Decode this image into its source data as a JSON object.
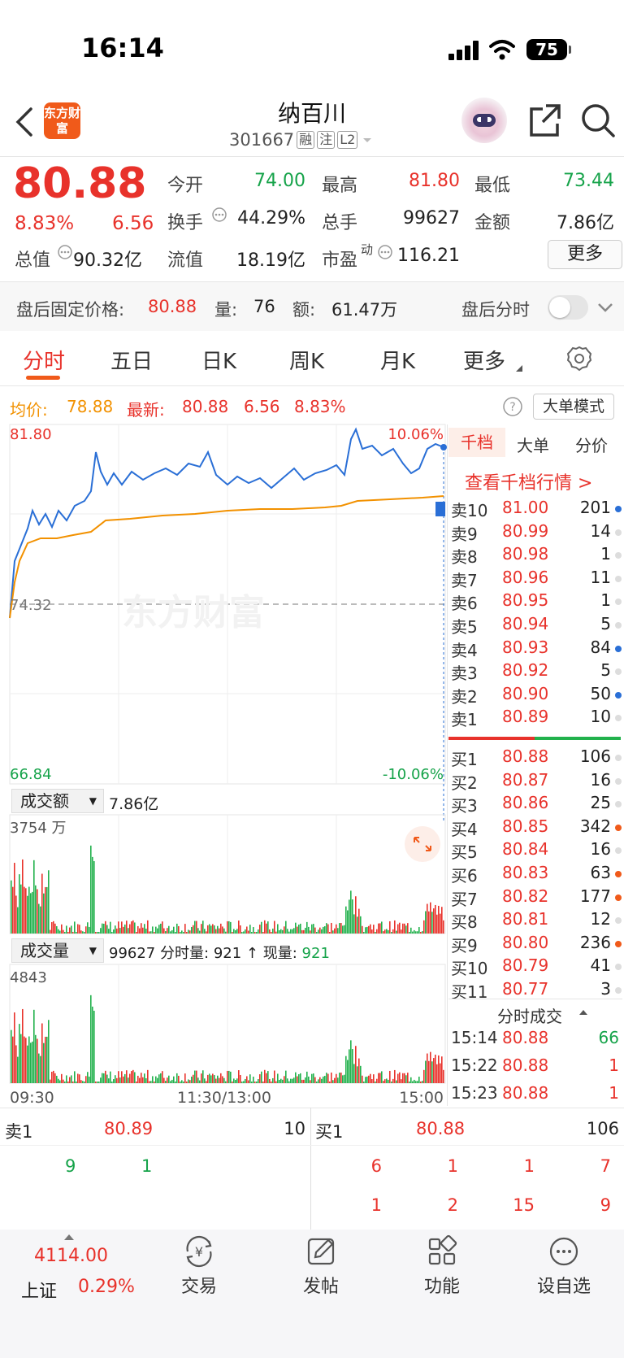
{
  "status_bar": {
    "time": "16:14",
    "battery": "75"
  },
  "header": {
    "logo_text": "东方财富",
    "title": "纳百川",
    "code": "301667",
    "tags": [
      "融",
      "注",
      "L2"
    ]
  },
  "quote": {
    "price": "80.88",
    "change_pct": "8.83%",
    "change": "6.56",
    "open_label": "今开",
    "open": "74.00",
    "high_label": "最高",
    "high": "81.80",
    "low_label": "最低",
    "low": "73.44",
    "turnover_label": "换手",
    "turnover": "44.29%",
    "volume_label": "总手",
    "volume": "99627",
    "amount_label": "金额",
    "amount": "7.86亿",
    "mktcap_label": "总值",
    "mktcap": "90.32亿",
    "float_label": "流值",
    "float": "18.19亿",
    "pe_label": "市盈",
    "pe_sup": "动",
    "pe": "116.21",
    "more_label": "更多"
  },
  "after_hours": {
    "label": "盘后固定价格:",
    "price": "80.88",
    "vol_label": "量:",
    "vol": "76",
    "amt_label": "额:",
    "amt": "61.47万",
    "switch_label": "盘后分时"
  },
  "tabs": [
    "分时",
    "五日",
    "日K",
    "周K",
    "月K",
    "更多"
  ],
  "chart_info": {
    "avg_label": "均价:",
    "avg": "78.88",
    "latest_label": "最新:",
    "latest": "80.88",
    "chg": "6.56",
    "pct": "8.83%",
    "mode_btn": "大单模式"
  },
  "chart_data": {
    "type": "line",
    "series": [
      {
        "name": "均价",
        "color": "#f29100"
      },
      {
        "color": "#2a6fd6"
      }
    ],
    "ylim": [
      66.84,
      81.8
    ],
    "y_top_label": "81.80",
    "y_mid_label": "74.32",
    "y_bottom_label": "66.84",
    "pct_top_label": "10.06%",
    "pct_bottom_label": "-10.06%",
    "x_labels": [
      "09:30",
      "11:30/13:00",
      "15:00"
    ],
    "watermark": "东方财富"
  },
  "amount_panel": {
    "select": "成交额",
    "total": "7.86亿",
    "max_label": "3754 万"
  },
  "volume_panel": {
    "select": "成交量",
    "total": "99627",
    "min_label": "分时量:",
    "min_vol": "921",
    "cur_label": "现量:",
    "cur_vol": "921",
    "max_label": "4843"
  },
  "orderbook": {
    "tabs": [
      "千档",
      "大单",
      "分价"
    ],
    "link": "查看千档行情 >",
    "asks": [
      {
        "label": "卖10",
        "price": "81.00",
        "vol": "201",
        "dot": "#2a6fd6"
      },
      {
        "label": "卖9",
        "price": "80.99",
        "vol": "14",
        "dot": "#ddd"
      },
      {
        "label": "卖8",
        "price": "80.98",
        "vol": "1",
        "dot": "#ddd"
      },
      {
        "label": "卖7",
        "price": "80.96",
        "vol": "11",
        "dot": "#ddd"
      },
      {
        "label": "卖6",
        "price": "80.95",
        "vol": "1",
        "dot": "#ddd"
      },
      {
        "label": "卖5",
        "price": "80.94",
        "vol": "5",
        "dot": "#ddd"
      },
      {
        "label": "卖4",
        "price": "80.93",
        "vol": "84",
        "dot": "#2a6fd6"
      },
      {
        "label": "卖3",
        "price": "80.92",
        "vol": "5",
        "dot": "#ddd"
      },
      {
        "label": "卖2",
        "price": "80.90",
        "vol": "50",
        "dot": "#2a6fd6"
      },
      {
        "label": "卖1",
        "price": "80.89",
        "vol": "10",
        "dot": "#ddd"
      }
    ],
    "bids": [
      {
        "label": "买1",
        "price": "80.88",
        "vol": "106",
        "dot": "#ddd"
      },
      {
        "label": "买2",
        "price": "80.87",
        "vol": "16",
        "dot": "#ddd"
      },
      {
        "label": "买3",
        "price": "80.86",
        "vol": "25",
        "dot": "#ddd"
      },
      {
        "label": "买4",
        "price": "80.85",
        "vol": "342",
        "dot": "#f05a1a"
      },
      {
        "label": "买5",
        "price": "80.84",
        "vol": "16",
        "dot": "#ddd"
      },
      {
        "label": "买6",
        "price": "80.83",
        "vol": "63",
        "dot": "#f05a1a"
      },
      {
        "label": "买7",
        "price": "80.82",
        "vol": "177",
        "dot": "#f05a1a"
      },
      {
        "label": "买8",
        "price": "80.81",
        "vol": "12",
        "dot": "#ddd"
      },
      {
        "label": "买9",
        "price": "80.80",
        "vol": "236",
        "dot": "#f05a1a"
      },
      {
        "label": "买10",
        "price": "80.79",
        "vol": "41",
        "dot": "#ddd"
      },
      {
        "label": "买11",
        "price": "80.77",
        "vol": "3",
        "dot": "#ddd"
      }
    ],
    "trades_title": "分时成交",
    "trades": [
      {
        "time": "15:14",
        "price": "80.88",
        "vol": "66",
        "color": "#16a34a"
      },
      {
        "time": "15:22",
        "price": "80.88",
        "vol": "1",
        "color": "#e8322b"
      },
      {
        "time": "15:23",
        "price": "80.88",
        "vol": "1",
        "color": "#e8322b"
      }
    ]
  },
  "queue": {
    "sell_label": "卖1",
    "sell_price": "80.89",
    "sell_vol": "10",
    "buy_label": "买1",
    "buy_price": "80.88",
    "buy_vol": "106",
    "sell_orders": [
      "9",
      "1"
    ],
    "buy_orders": [
      "6",
      "1",
      "1",
      "7",
      "1",
      "2",
      "15",
      "9"
    ]
  },
  "bottom_nav": {
    "index_value": "4114.00",
    "index_name": "上证",
    "index_pct": "0.29%",
    "items": [
      "交易",
      "发帖",
      "功能",
      "设自选"
    ]
  }
}
